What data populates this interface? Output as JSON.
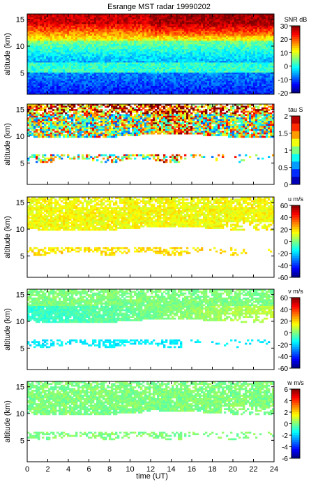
{
  "chart_data": {
    "type": "heatmap",
    "title": "Esrange MST radar 19990202",
    "xlabel": "time (UT)",
    "x_ticks": [
      0,
      2,
      4,
      6,
      8,
      10,
      12,
      14,
      16,
      18,
      20,
      22,
      24
    ],
    "xlim": [
      0,
      24
    ],
    "colormap": "jet",
    "panels": [
      {
        "id": "snr",
        "ylabel": "altitude (km)",
        "ylim": [
          1,
          16
        ],
        "y_ticks": [
          5,
          10,
          15
        ],
        "colorbar_label": "SNR dB",
        "clim": [
          -20,
          30
        ],
        "colorbar_ticks": [
          30,
          20,
          10,
          0,
          -10,
          -20
        ]
      },
      {
        "id": "tau",
        "ylabel": "altitude (km)",
        "ylim": [
          1,
          16
        ],
        "y_ticks": [
          5,
          10,
          15
        ],
        "colorbar_label": "tau S",
        "clim": [
          0,
          2
        ],
        "colorbar_ticks": [
          "2",
          "1.5",
          "1",
          "0.5",
          "0"
        ]
      },
      {
        "id": "u",
        "ylabel": "altitude (km)",
        "ylim": [
          1,
          16
        ],
        "y_ticks": [
          5,
          10,
          15
        ],
        "colorbar_label": "u m/s",
        "clim": [
          -60,
          60
        ],
        "colorbar_ticks": [
          60,
          40,
          20,
          0,
          -20,
          -40,
          -60
        ]
      },
      {
        "id": "v",
        "ylabel": "altitude (km)",
        "ylim": [
          1,
          16
        ],
        "y_ticks": [
          5,
          10,
          15
        ],
        "colorbar_label": "v m/s",
        "clim": [
          -60,
          60
        ],
        "colorbar_ticks": [
          60,
          40,
          20,
          0,
          -20,
          -40,
          -60
        ]
      },
      {
        "id": "w",
        "ylabel": "altitude (km)",
        "ylim": [
          1,
          16
        ],
        "y_ticks": [
          5,
          10,
          15
        ],
        "colorbar_label": "w m/s",
        "clim": [
          -6,
          6
        ],
        "colorbar_ticks": [
          6,
          4,
          2,
          0,
          -2,
          -4,
          -6
        ]
      }
    ]
  }
}
